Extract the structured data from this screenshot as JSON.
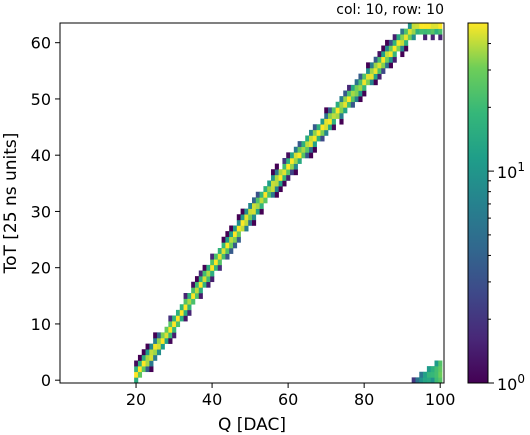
{
  "chart_data": {
    "type": "heatmap",
    "annotation": "col: 10, row: 10",
    "xlabel": "Q [DAC]",
    "ylabel": "ToT [25 ns units]",
    "xlim": [
      0,
      101
    ],
    "ylim": [
      -0.5,
      63.5
    ],
    "x_ticks": [
      20,
      40,
      60,
      80,
      100
    ],
    "y_ticks": [
      0,
      10,
      20,
      30,
      40,
      50,
      60
    ],
    "colorbar": {
      "scale": "log",
      "range": [
        1,
        50
      ],
      "ticks": [
        {
          "value": 1,
          "base": "10",
          "exp": "0"
        },
        {
          "value": 10,
          "base": "10",
          "exp": "1"
        }
      ],
      "colormap": "viridis"
    },
    "band": {
      "description_points_x": [
        20,
        30,
        40,
        50,
        60,
        70,
        80,
        90,
        94,
        100
      ],
      "description_points_y": [
        1,
        10,
        20,
        29.5,
        38,
        45.5,
        53,
        60.5,
        63,
        63
      ],
      "secondary_cluster": {
        "x_range": [
          93,
          100
        ],
        "y_range": [
          0,
          3
        ]
      }
    }
  }
}
